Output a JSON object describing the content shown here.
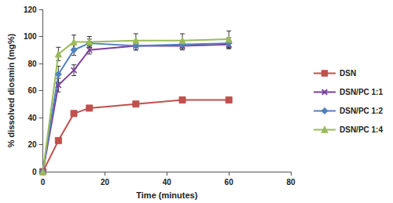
{
  "chart_data": {
    "type": "line",
    "x_label": "Time (minutes)",
    "y_label": "% dissolved diosmin (mg%)",
    "x": [
      0,
      5,
      10,
      15,
      30,
      45,
      60
    ],
    "series": [
      {
        "name": "DSN",
        "color": "#c0504d",
        "marker": "square",
        "values": [
          0,
          23,
          43,
          47,
          50,
          53,
          53
        ],
        "errors": [
          0,
          1,
          1,
          1,
          1,
          1,
          1
        ]
      },
      {
        "name": "DSN/PC 1:1",
        "color": "#7b3f9e",
        "marker": "x",
        "values": [
          0,
          64,
          75,
          90,
          93,
          93,
          94
        ],
        "errors": [
          0,
          5,
          4,
          3,
          3,
          3,
          3
        ]
      },
      {
        "name": "DSN/PC 1:2",
        "color": "#4f81bd",
        "marker": "diamond",
        "values": [
          0,
          72,
          90,
          95,
          93,
          94,
          95
        ],
        "errors": [
          0,
          6,
          4,
          3,
          3,
          3,
          4
        ]
      },
      {
        "name": "DSN/PC 1:4",
        "color": "#9bbb59",
        "marker": "triangle",
        "values": [
          0,
          87,
          96,
          96,
          97,
          97,
          98
        ],
        "errors": [
          0,
          5,
          5,
          4,
          5,
          5,
          6
        ]
      }
    ],
    "xlim": [
      0,
      80
    ],
    "xticks": [
      0,
      20,
      40,
      60,
      80
    ],
    "ylim": [
      0,
      120
    ],
    "yticks": [
      0,
      20,
      40,
      60,
      80,
      100,
      120
    ],
    "grid": false,
    "legend": "right"
  }
}
